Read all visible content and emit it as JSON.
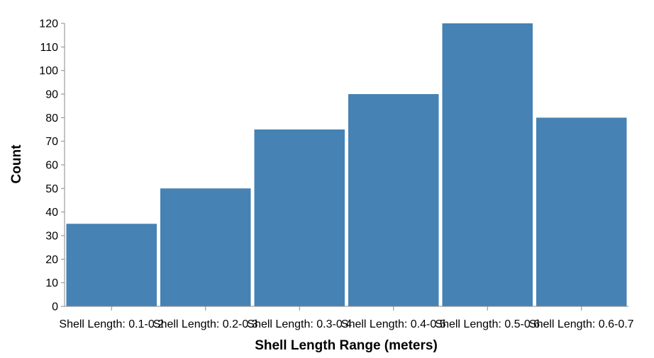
{
  "chart_data": {
    "type": "bar",
    "categories": [
      "Shell Length: 0.1-0.2",
      "Shell Length: 0.2-0.3",
      "Shell Length: 0.3-0.4",
      "Shell Length: 0.4-0.5",
      "Shell Length: 0.5-0.6",
      "Shell Length: 0.6-0.7"
    ],
    "values": [
      35,
      50,
      75,
      90,
      120,
      80
    ],
    "xlabel": "Shell Length Range (meters)",
    "ylabel": "Count",
    "ylim": [
      0,
      120
    ],
    "yticks": [
      0,
      10,
      20,
      30,
      40,
      50,
      60,
      70,
      80,
      90,
      100,
      110,
      120
    ],
    "grid": false,
    "bar_color": "#4682b4",
    "axis_color": "#888888"
  }
}
